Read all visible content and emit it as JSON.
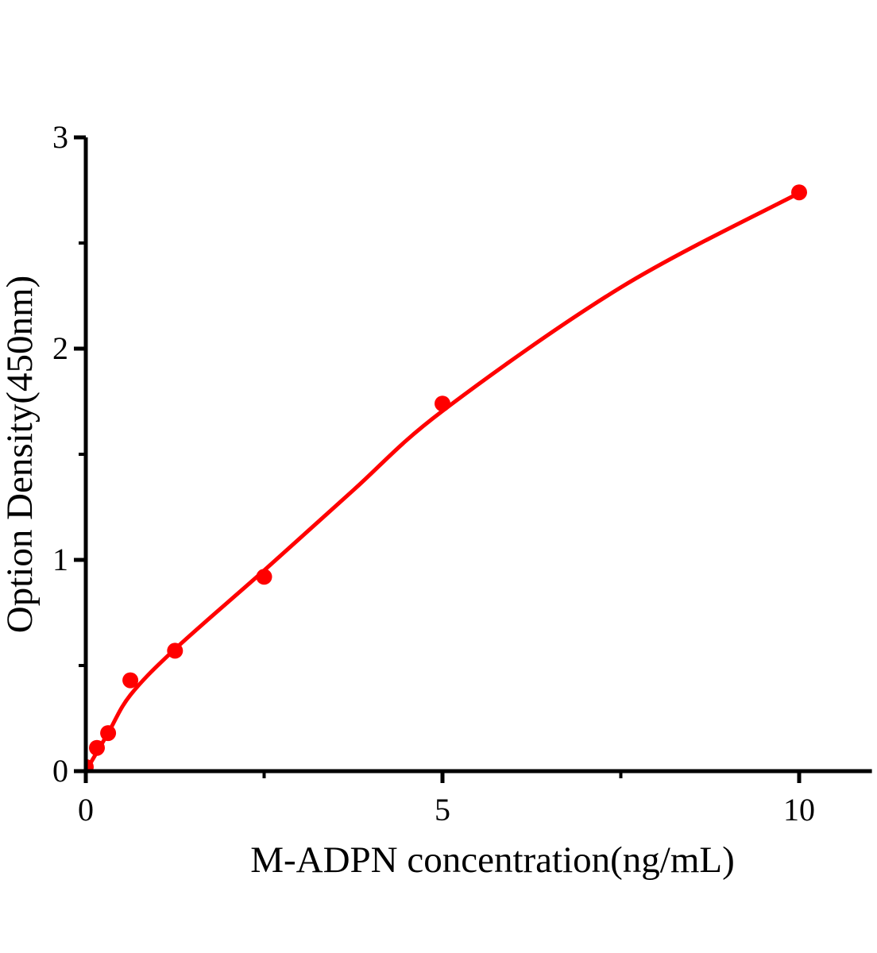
{
  "figure": {
    "background_color": "#ffffff",
    "text_color": "#000000"
  },
  "chart_data": {
    "type": "scatter",
    "title": "",
    "xlabel": "M-ADPN concentration(ng/mL)",
    "ylabel": "Option Density(450nm)",
    "grid": false,
    "legend": "none",
    "point_color": "#ff0000",
    "curve_color": "#ff0000",
    "axis_color": "#000000",
    "xlim": [
      0,
      11.02
    ],
    "ylim": [
      0,
      3
    ],
    "x_axis": {
      "major_ticks": [
        {
          "value": 0,
          "label": "0"
        },
        {
          "value": 5,
          "label": "5"
        },
        {
          "value": 10,
          "label": "10"
        }
      ],
      "minor_ticks": [
        2.5,
        7.5
      ]
    },
    "y_axis": {
      "major_ticks": [
        {
          "value": 0,
          "label": "0"
        },
        {
          "value": 1,
          "label": "1"
        },
        {
          "value": 2,
          "label": "2"
        },
        {
          "value": 3,
          "label": "3"
        }
      ],
      "minor_ticks": [
        0.5,
        1.5,
        2.5
      ]
    },
    "points": [
      {
        "conc": 0,
        "od": 0.02
      },
      {
        "conc": 0.156,
        "od": 0.11
      },
      {
        "conc": 0.3125,
        "od": 0.18
      },
      {
        "conc": 0.625,
        "od": 0.43
      },
      {
        "conc": 1.25,
        "od": 0.57
      },
      {
        "conc": 2.5,
        "od": 0.92
      },
      {
        "conc": 5,
        "od": 1.74
      },
      {
        "conc": 10,
        "od": 2.74
      }
    ],
    "fit_curve_samples": [
      {
        "x": 0,
        "y": 0
      },
      {
        "x": 0.3125,
        "y": 0.18
      },
      {
        "x": 0.625,
        "y": 0.36
      },
      {
        "x": 1.25,
        "y": 0.578
      },
      {
        "x": 2.5,
        "y": 0.95
      },
      {
        "x": 3.75,
        "y": 1.33
      },
      {
        "x": 5,
        "y": 1.705
      },
      {
        "x": 7.5,
        "y": 2.29
      },
      {
        "x": 10,
        "y": 2.737
      }
    ]
  }
}
